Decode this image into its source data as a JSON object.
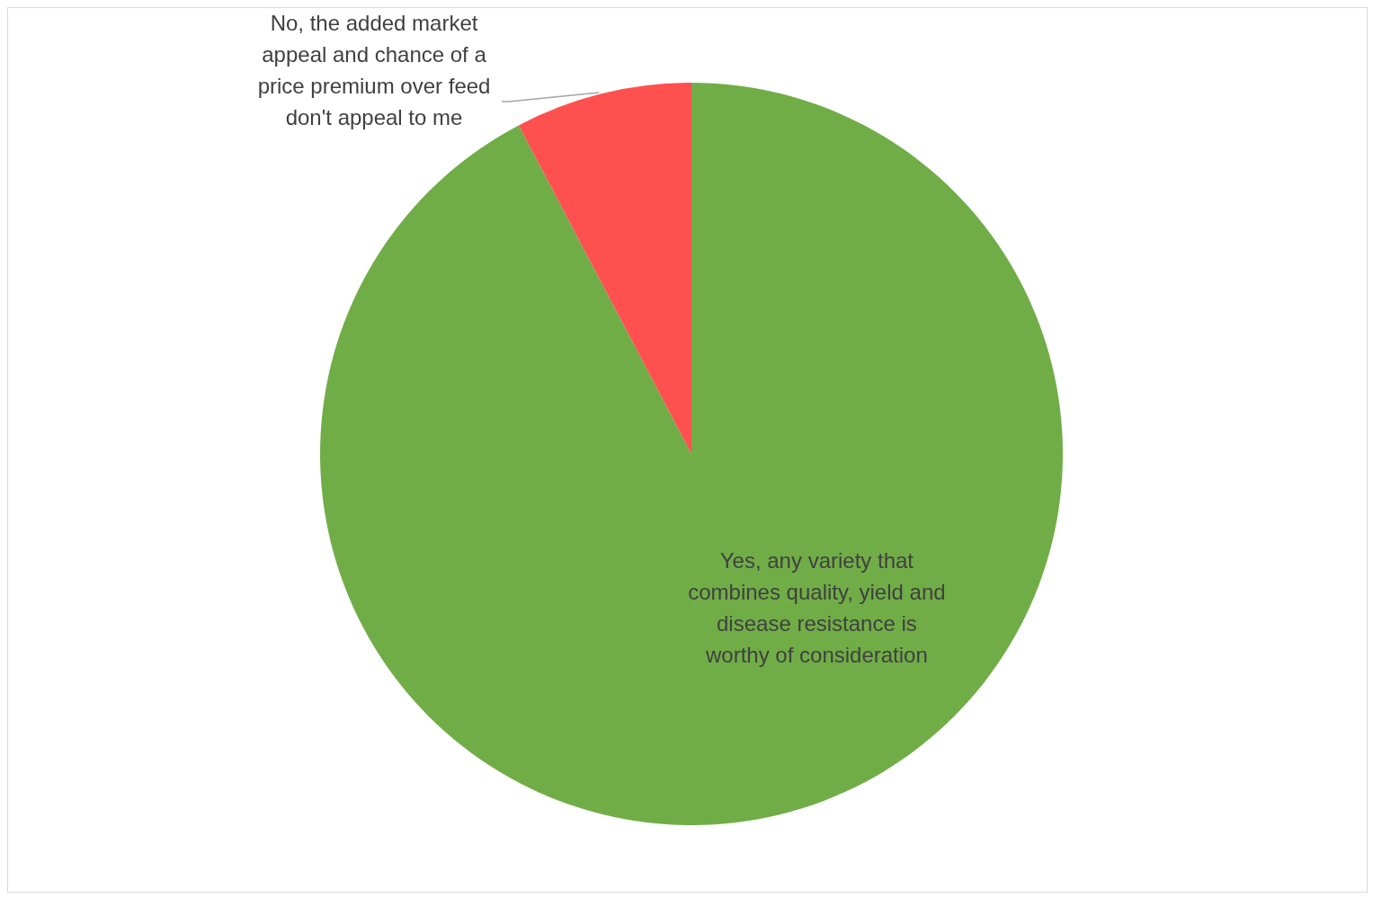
{
  "chart_data": {
    "type": "pie",
    "categories": [
      "Yes, any variety that combines quality, yield and disease resistance is worthy of consideration",
      "No, the added market appeal and chance of a price premium over feed don't appeal to me"
    ],
    "values": [
      92.3,
      7.7
    ],
    "colors": [
      "#70ad47",
      "#ff5050"
    ]
  }
}
